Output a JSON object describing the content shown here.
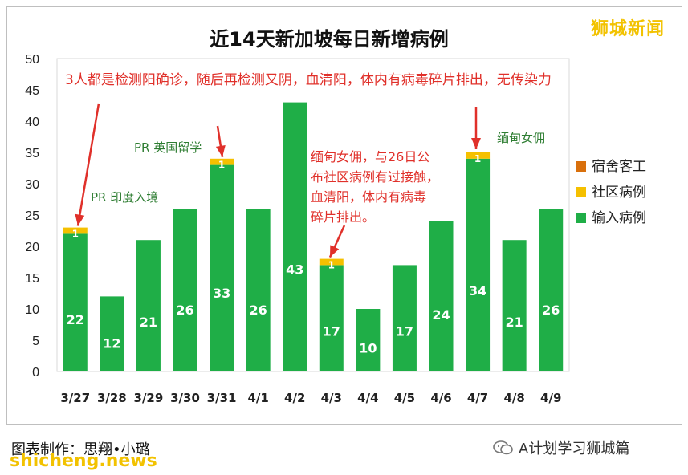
{
  "brand_label": "狮城新闻",
  "credit": "图表制作：思翔•小璐",
  "watermark_site": "shicheng.news",
  "wechat_label": "A计划学习狮城篇",
  "colors": {
    "dormitory": "#d9700c",
    "community": "#f5c000",
    "imported": "#1fae47",
    "annotation_red": "#e0302a",
    "annotation_green": "#2e7d32",
    "grid": "#d9d9d9"
  },
  "chart_data": {
    "type": "bar",
    "stacked": true,
    "title": "近14天新加坡每日新增病例",
    "categories": [
      "3/27",
      "3/28",
      "3/29",
      "3/30",
      "3/31",
      "4/1",
      "4/2",
      "4/3",
      "4/4",
      "4/5",
      "4/6",
      "4/7",
      "4/8",
      "4/9"
    ],
    "series": [
      {
        "name": "输入病例",
        "color": "#1fae47",
        "values": [
          22,
          12,
          21,
          26,
          33,
          26,
          43,
          17,
          10,
          17,
          24,
          34,
          21,
          26
        ]
      },
      {
        "name": "社区病例",
        "color": "#f5c000",
        "values": [
          1,
          0,
          0,
          0,
          1,
          0,
          0,
          1,
          0,
          0,
          0,
          1,
          0,
          0
        ]
      },
      {
        "name": "宿舍客工",
        "color": "#d9700c",
        "values": [
          0,
          0,
          0,
          0,
          0,
          0,
          0,
          0,
          0,
          0,
          0,
          0,
          0,
          0
        ]
      }
    ],
    "legend": [
      "宿舍客工",
      "社区病例",
      "输入病例"
    ],
    "legend_position": "right",
    "yticks": [
      0,
      5,
      10,
      15,
      20,
      25,
      30,
      35,
      40,
      45,
      50
    ],
    "ylim": [
      0,
      50
    ],
    "grid": false,
    "annotations": [
      {
        "text": "3人都是检测阳确诊，随后再检测又阴，血清阳，体内有病毒碎片排出，无传染力",
        "color": "red"
      },
      {
        "text": "PR 印度入境",
        "color": "green",
        "category": "3/27"
      },
      {
        "text": "PR 英国留学",
        "color": "green",
        "category": "3/31"
      },
      {
        "text": "缅甸女佣，与26日公\n布社区病例有过接触，\n血清阳，体内有病毒\n碎片排出。",
        "color": "red",
        "category": "4/3"
      },
      {
        "text": "缅甸女佣",
        "color": "green",
        "category": "4/7"
      }
    ]
  }
}
